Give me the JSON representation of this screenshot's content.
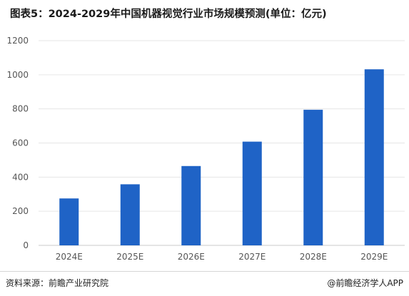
{
  "header": {
    "title": "图表5：2024-2029年中国机器视觉行业市场规模预测(单位：亿元)"
  },
  "footer": {
    "source": "资料来源：前瞻产业研究院",
    "credit": "@前瞻经济学人APP"
  },
  "colors": {
    "bar": "#1f63c6",
    "grid": "#e6e6e6",
    "axis": "#c9c9c9",
    "tick_text": "#555555"
  },
  "chart_data": {
    "type": "bar",
    "title": "图表5：2024-2029年中国机器视觉行业市场规模预测(单位：亿元)",
    "categories": [
      "2024E",
      "2025E",
      "2026E",
      "2027E",
      "2028E",
      "2029E"
    ],
    "values": [
      275,
      358,
      465,
      608,
      795,
      1032
    ],
    "yticks": [
      0,
      200,
      400,
      600,
      800,
      1000,
      1200
    ],
    "ylim": [
      0,
      1200
    ],
    "xlabel": "",
    "ylabel": "",
    "grid": true,
    "legend": "none"
  }
}
